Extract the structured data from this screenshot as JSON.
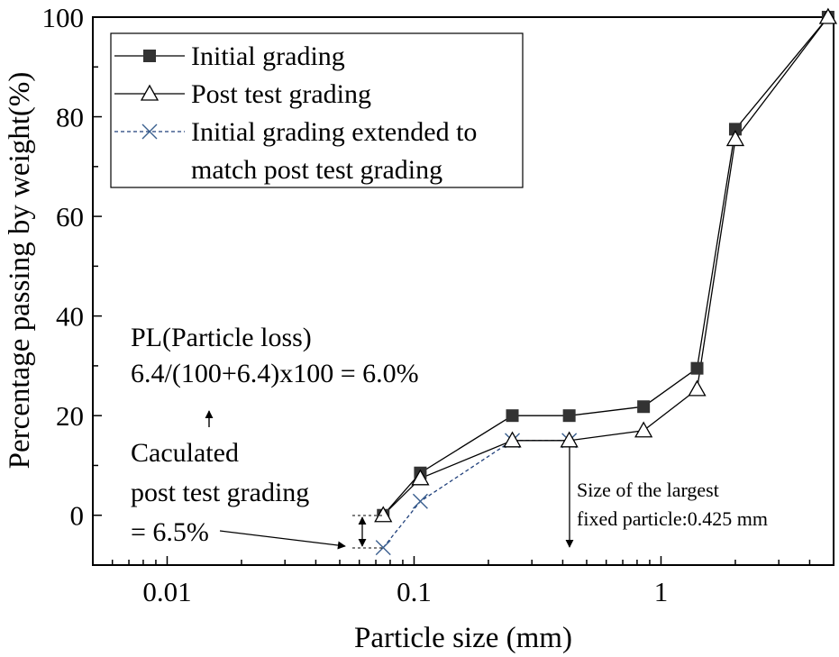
{
  "chart_data": {
    "type": "line",
    "title": "",
    "xlabel": "Particle size (mm)",
    "ylabel": "Percentage passing by weight(%)",
    "xscale": "log",
    "xlim": [
      0.005,
      5
    ],
    "ylim": [
      -10,
      100
    ],
    "xticks": [
      0.01,
      0.1,
      1
    ],
    "xtick_labels": [
      "0.01",
      "0.1",
      "1"
    ],
    "yticks": [
      0,
      20,
      40,
      60,
      80,
      100
    ],
    "ytick_labels": [
      "0",
      "20",
      "40",
      "60",
      "80",
      "100"
    ],
    "grid": false,
    "legend_position": "top-left",
    "series": [
      {
        "name": "Initial grading",
        "marker": "filled-square",
        "line": "solid",
        "color": "#000000",
        "marker_color": "#333333",
        "x": [
          0.075,
          0.106,
          0.25,
          0.425,
          0.85,
          1.4,
          2.0,
          4.75
        ],
        "y": [
          0,
          8.5,
          20,
          20,
          21.8,
          29.5,
          77.5,
          100
        ]
      },
      {
        "name": "Post test grading",
        "marker": "open-triangle",
        "line": "solid",
        "color": "#000000",
        "marker_color": "#000000",
        "x": [
          0.075,
          0.106,
          0.25,
          0.425,
          0.85,
          1.4,
          2.0,
          4.75
        ],
        "y": [
          0,
          7.4,
          15,
          15,
          17,
          25.3,
          75.5,
          100
        ]
      },
      {
        "name": "Initial grading extended to match post test grading",
        "name_lines": [
          "Initial grading extended to",
          "match post test grading"
        ],
        "marker": "cross",
        "line": "dashed",
        "color": "#1f3f7a",
        "marker_color": "#3a5f8f",
        "x": [
          0.075,
          0.106,
          0.25,
          0.425
        ],
        "y": [
          -6.5,
          2.8,
          15,
          15
        ]
      }
    ],
    "annotations": {
      "pl_line1": "PL(Particle loss)",
      "pl_line2": "6.4/(100+6.4)x100 = 6.0%",
      "calc_line1": "Caculated",
      "calc_line2": "post test grading",
      "calc_line3": "= 6.5%",
      "size_line1": "Size of the largest",
      "size_line2": "fixed particle:0.425 mm"
    }
  }
}
